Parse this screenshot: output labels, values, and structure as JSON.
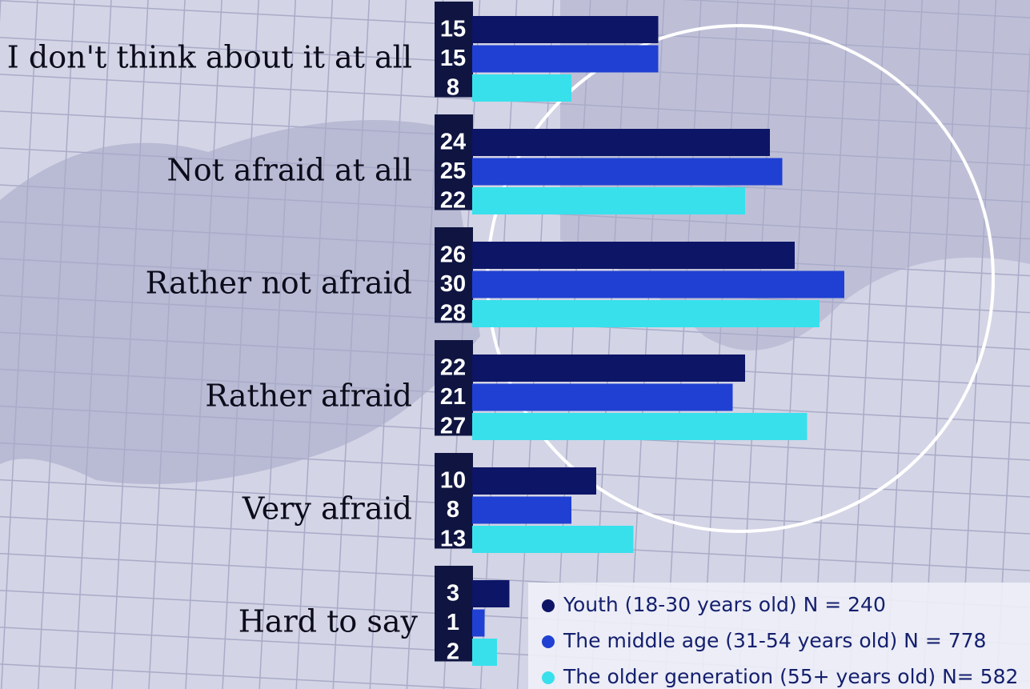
{
  "chart_data": {
    "type": "bar",
    "orientation": "horizontal",
    "categories": [
      "I don't think about it at all",
      "Not afraid at all",
      "Rather not afraid",
      "Rather afraid",
      "Very afraid",
      "Hard to say"
    ],
    "series": [
      {
        "name": "Youth (18-30 years old) N = 240",
        "color": "#0d1566",
        "values": [
          15,
          24,
          26,
          22,
          10,
          3
        ]
      },
      {
        "name": "The middle age (31-54 years old) N = 778",
        "color": "#1f40d2",
        "values": [
          15,
          25,
          30,
          21,
          8,
          1
        ]
      },
      {
        "name": "The older generation (55+ years old) N= 582",
        "color": "#38e0ec",
        "values": [
          8,
          22,
          28,
          27,
          13,
          2
        ]
      }
    ]
  }
}
